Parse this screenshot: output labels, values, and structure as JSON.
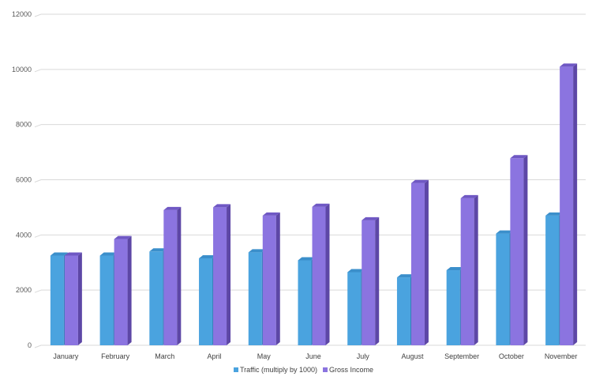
{
  "chart_data": {
    "type": "bar",
    "style": "3d-clustered-column",
    "categories": [
      "January",
      "February",
      "March",
      "April",
      "May",
      "June",
      "July",
      "August",
      "September",
      "October",
      "November"
    ],
    "series": [
      {
        "name": "Traffic (multiply by 1000)",
        "color": "#4aa3df",
        "side_color": "#2f7fb8",
        "top_color": "#3b8fcb",
        "values": [
          3250,
          3250,
          3400,
          3150,
          3370,
          3080,
          2650,
          2460,
          2720,
          4050,
          4700
        ]
      },
      {
        "name": "Gross Income",
        "color": "#8b74e0",
        "side_color": "#5d47a6",
        "top_color": "#6f58c4",
        "values": [
          3250,
          3850,
          4900,
          5000,
          4700,
          5020,
          4530,
          5880,
          5330,
          6780,
          10100
        ]
      }
    ],
    "ylim": [
      0,
      12000
    ],
    "yticks": [
      0,
      2000,
      4000,
      6000,
      8000,
      10000,
      12000
    ],
    "grid": true,
    "legend": "bottom"
  }
}
